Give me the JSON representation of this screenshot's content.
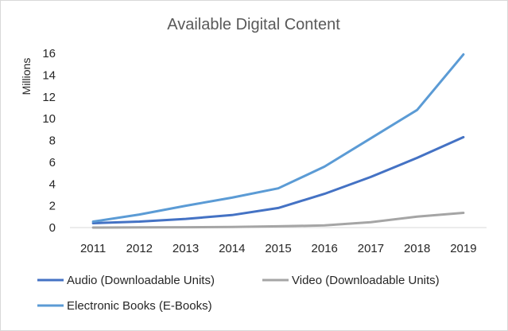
{
  "chart_data": {
    "type": "line",
    "title": "Available Digital Content",
    "xlabel": "",
    "ylabel": "Millions",
    "categories": [
      "2011",
      "2012",
      "2013",
      "2014",
      "2015",
      "2016",
      "2017",
      "2018",
      "2019"
    ],
    "ylim": [
      0,
      16
    ],
    "yticks": [
      0,
      2,
      4,
      6,
      8,
      10,
      12,
      14,
      16
    ],
    "grid": false,
    "legend_position": "bottom",
    "series": [
      {
        "name": "Audio (Downloadable Units)",
        "color": "#4472c4",
        "values": [
          0.4,
          0.55,
          0.8,
          1.15,
          1.8,
          3.1,
          4.65,
          6.4,
          8.3
        ]
      },
      {
        "name": "Video (Downloadable Units)",
        "color": "#a5a5a5",
        "values": [
          0.0,
          0.02,
          0.03,
          0.06,
          0.12,
          0.2,
          0.5,
          1.0,
          1.35
        ]
      },
      {
        "name": "Electronic Books (E-Books)",
        "color": "#5b9bd5",
        "values": [
          0.55,
          1.2,
          2.0,
          2.75,
          3.6,
          5.6,
          8.2,
          10.8,
          15.9
        ]
      }
    ]
  }
}
